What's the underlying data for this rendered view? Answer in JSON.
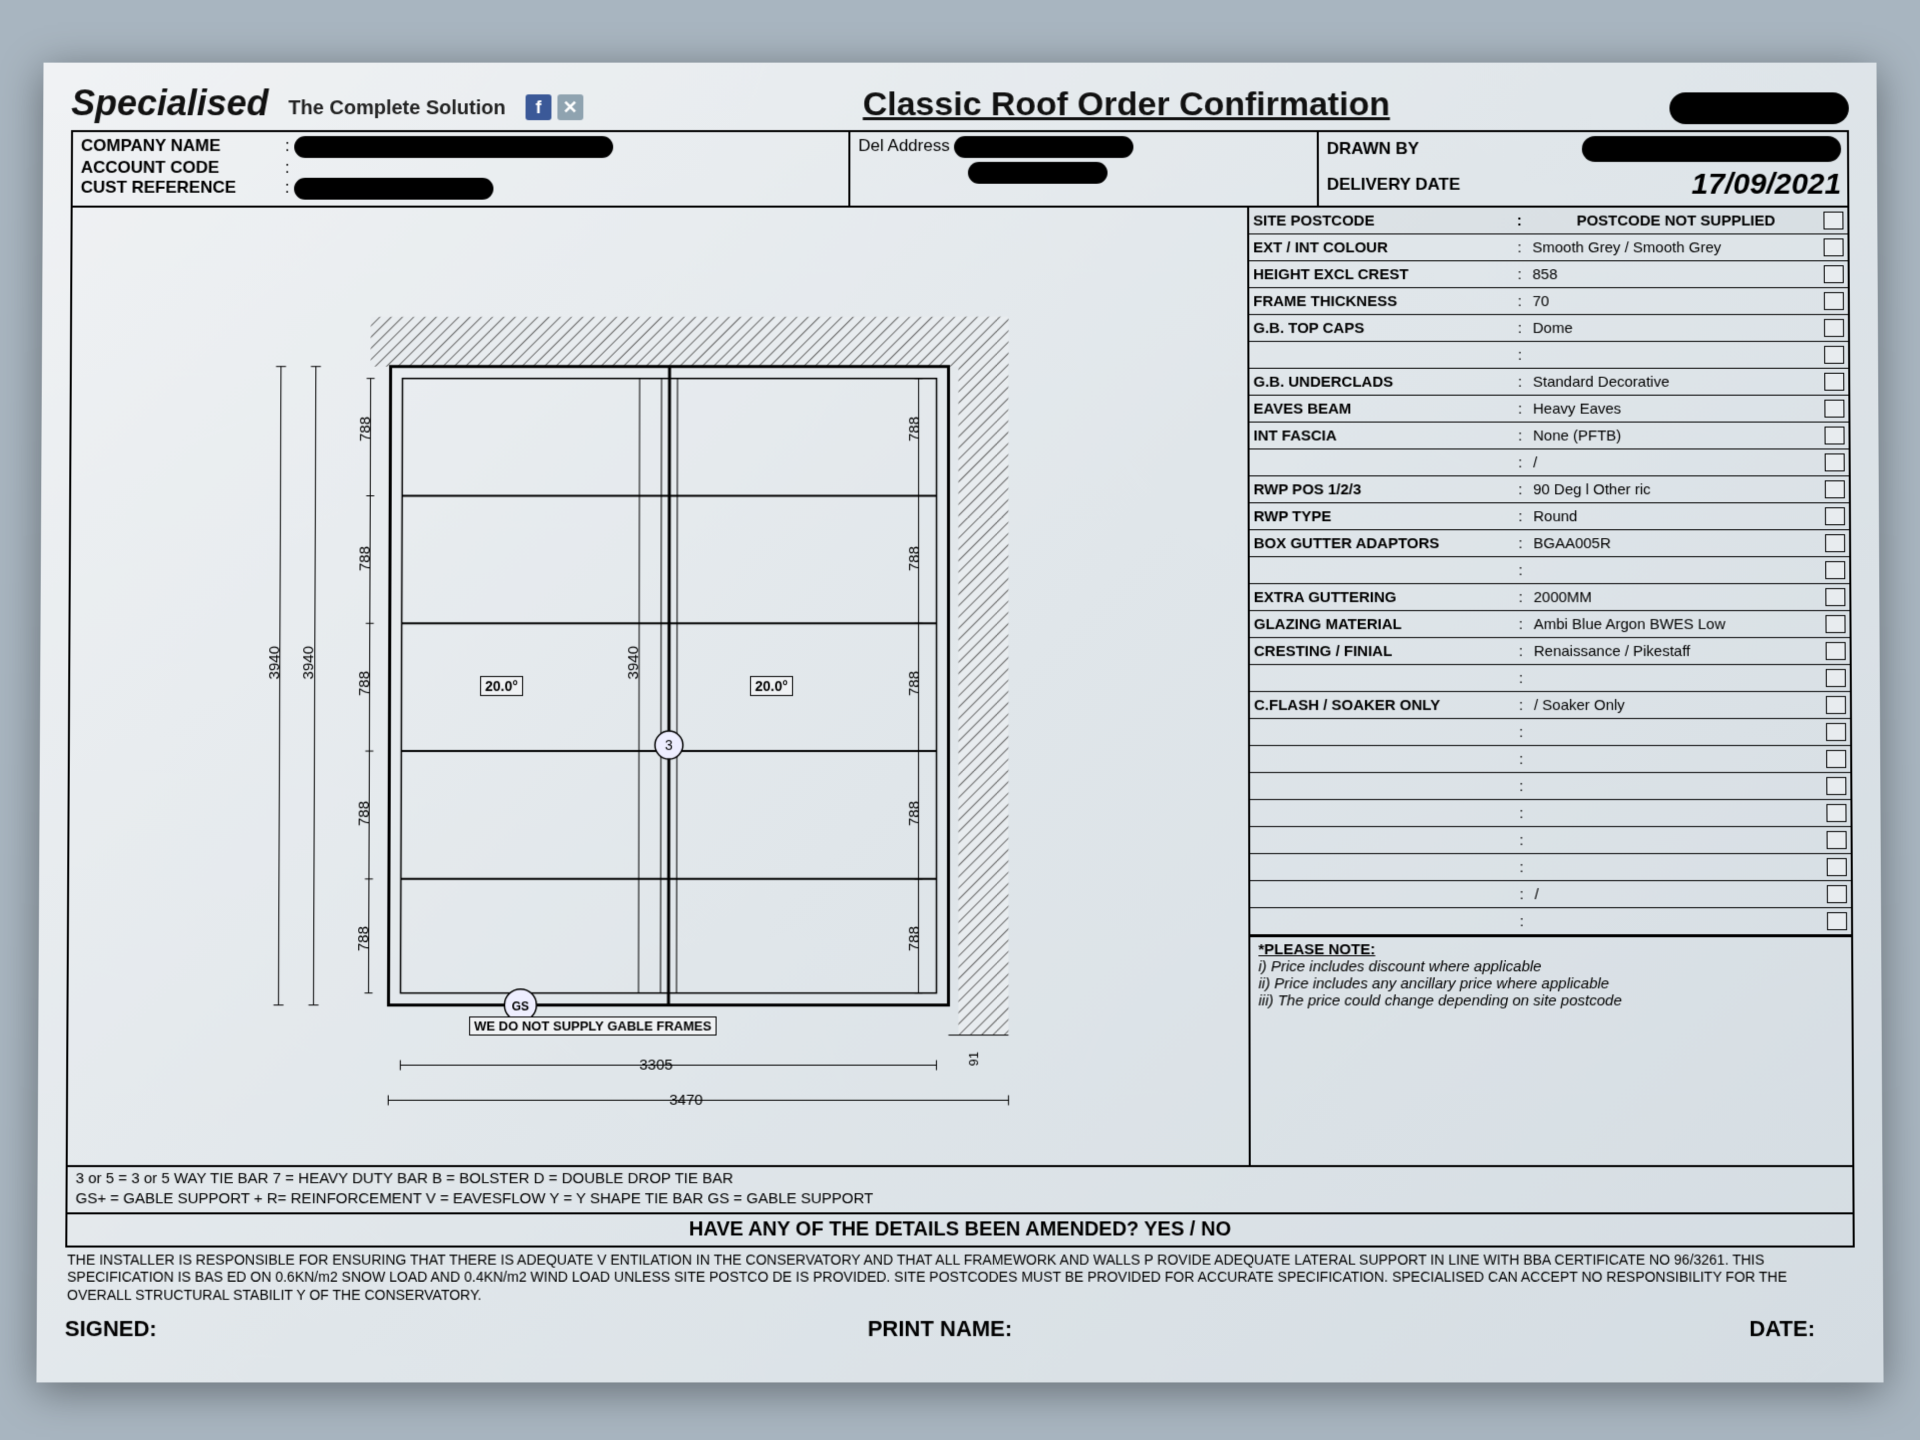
{
  "header": {
    "brand": "Specialised",
    "tagline": "The Complete Solution",
    "title": "Classic Roof Order Confirmation"
  },
  "top": {
    "company_label": "COMPANY NAME",
    "account_label": "ACCOUNT CODE",
    "custref_label": "CUST REFERENCE",
    "del_label": "Del Address",
    "drawn_label": "DRAWN BY",
    "delivery_label": "DELIVERY DATE",
    "delivery_value": "17/09/2021"
  },
  "spec": {
    "rows": [
      {
        "k": "SITE POSTCODE",
        "v": "POSTCODE NOT SUPPLIED",
        "bold": true
      },
      {
        "k": "EXT / INT COLOUR",
        "v": "Smooth Grey / Smooth Grey"
      },
      {
        "k": "HEIGHT EXCL CREST",
        "v": "858"
      },
      {
        "k": "FRAME THICKNESS",
        "v": "70"
      },
      {
        "k": "G.B. TOP CAPS",
        "v": "Dome"
      },
      {
        "k": "",
        "v": ""
      },
      {
        "k": "G.B. UNDERCLADS",
        "v": "Standard Decorative"
      },
      {
        "k": "EAVES BEAM",
        "v": "Heavy Eaves"
      },
      {
        "k": "INT FASCIA",
        "v": "None (PFTB)"
      },
      {
        "k": "",
        "v": "/"
      },
      {
        "k": "RWP POS 1/2/3",
        "v": "90 Deg l   Other ric"
      },
      {
        "k": "RWP TYPE",
        "v": "Round"
      },
      {
        "k": "BOX GUTTER ADAPTORS",
        "v": "BGAA005R"
      },
      {
        "k": "",
        "v": ""
      },
      {
        "k": "EXTRA GUTTERING",
        "v": "2000MM"
      },
      {
        "k": "GLAZING MATERIAL",
        "v": "Ambi Blue Argon BWES Low"
      },
      {
        "k": "CRESTING / FINIAL",
        "v": "Renaissance / Pikestaff"
      },
      {
        "k": "",
        "v": ""
      },
      {
        "k": "C.FLASH / SOAKER ONLY",
        "v": "/ Soaker Only"
      },
      {
        "k": "",
        "v": ""
      },
      {
        "k": "",
        "v": ""
      },
      {
        "k": "",
        "v": ""
      },
      {
        "k": "",
        "v": ""
      },
      {
        "k": "",
        "v": ""
      },
      {
        "k": "",
        "v": ""
      },
      {
        "k": "",
        "v": "/"
      },
      {
        "k": "",
        "v": ""
      }
    ]
  },
  "notes": {
    "title": "*PLEASE NOTE:",
    "l1": "i)  Price includes discount where applicable",
    "l2": "ii)  Price includes any ancillary price where applicable",
    "l3": "iii)  The price could change depending on site postcode"
  },
  "drawing": {
    "outer_w": "3470",
    "inner_w": "3305",
    "outer_h": "3940",
    "inner_h": "3940",
    "mid_h": "3940",
    "seg": "788",
    "pitch": "20.0°",
    "note": "WE DO NOT SUPPLY GABLE FRAMES",
    "right_w": "91",
    "node": "3",
    "gs": "GS"
  },
  "legend": {
    "l1": "3 or 5 = 3 or 5 WAY TIE BAR      7 = HEAVY DUTY BAR      B = BOLSTER      D = DOUBLE DROP TIE BAR",
    "l2": "GS+ = GABLE SUPPORT +      R= REINFORCEMENT      V = EAVESFLOW      Y = Y SHAPE TIE BAR      GS = GABLE SUPPORT"
  },
  "amend": "HAVE ANY OF THE DETAILS BEEN AMENDED?          YES  /  NO",
  "disclaimer": "THE INSTALLER IS RESPONSIBLE FOR ENSURING THAT THERE IS ADEQUATE V ENTILATION  IN THE CONSERVATORY AND THAT ALL FRAMEWORK AND WALLS P ROVIDE ADEQUATE LATERAL SUPPORT IN LINE WITH BBA CERTIFICATE NO 96/3261. THIS SPECIFICATION IS BAS ED ON 0.6KN/m2 SNOW LOAD AND 0.4KN/m2 WIND LOAD UNLESS SITE POSTCO DE IS PROVIDED. SITE POSTCODES MUST BE PROVIDED FOR ACCURATE SPECIFICATION. SPECIALISED CAN ACCEPT NO RESPONSIBILITY  FOR THE OVERALL STRUCTURAL STABILIT Y OF THE CONSERVATORY.",
  "sig": {
    "signed": "SIGNED:",
    "print": "PRINT NAME:",
    "date": "DATE:"
  }
}
